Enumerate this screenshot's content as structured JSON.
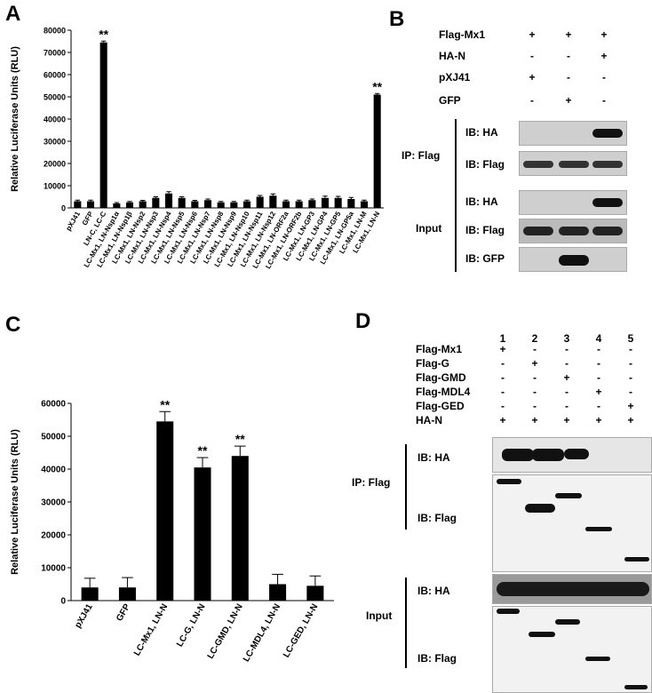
{
  "panelA": {
    "letter": "A",
    "chart_data": {
      "type": "bar",
      "ylabel": "Relative Luciferase Units (RLU)",
      "ylim": [
        0,
        80000
      ],
      "yticks": [
        0,
        10000,
        20000,
        30000,
        40000,
        50000,
        60000,
        70000,
        80000
      ],
      "categories": [
        "pXJ41",
        "GFP",
        "LN-C, LC-C",
        "LC-Mx1, LN-Nsp1α",
        "LC-Mx1, LN-Nsp1β",
        "LC-Mx1, LN-Nsp2",
        "LC-Mx1, LN-Nsp3",
        "LC-Mx1, LN-Nsp4",
        "LC-Mx1, LN-Nsp5",
        "LC-Mx1, LN-Nsp6",
        "LC-Mx1, LN-Nsp7",
        "LC-Mx1, LN-Nsp8",
        "LC-Mx1, LN-Nsp9",
        "LC-Mx1, LN-Nsp10",
        "LC-Mx1, LN-Nsp11",
        "LC-Mx1, LN-Nsp12",
        "LC-Mx1, LN-ORF2a",
        "LC-Mx1, LN-ORF2b",
        "LC-Mx1, LN-GP3",
        "LC-Mx1, LN-GP4",
        "LC-Mx1, LN-GP5",
        "LC-Mx1, LN-GP5a",
        "LC-Mx1, LN-M",
        "LC-Mx1, LN-N"
      ],
      "values": [
        3000,
        3000,
        74500,
        2000,
        2500,
        3000,
        4500,
        6500,
        4500,
        3000,
        3500,
        2500,
        2500,
        3000,
        5000,
        5500,
        3000,
        3000,
        3500,
        4500,
        4500,
        4000,
        3000,
        51000
      ],
      "errors": [
        500,
        500,
        600,
        400,
        400,
        400,
        500,
        800,
        500,
        400,
        500,
        400,
        400,
        500,
        600,
        800,
        500,
        500,
        500,
        800,
        700,
        700,
        500,
        500
      ],
      "annotations": [
        "",
        "",
        "**",
        "",
        "",
        "",
        "",
        "",
        "",
        "",
        "",
        "",
        "",
        "",
        "",
        "",
        "",
        "",
        "",
        "",
        "",
        "",
        "",
        "**"
      ]
    }
  },
  "panelB": {
    "letter": "B",
    "rows": [
      {
        "label": "Flag-Mx1",
        "signs": [
          "+",
          "+",
          "+"
        ]
      },
      {
        "label": "HA-N",
        "signs": [
          "-",
          "-",
          "+"
        ]
      },
      {
        "label": "pXJ41",
        "signs": [
          "+",
          "-",
          "-"
        ]
      },
      {
        "label": "GFP",
        "signs": [
          "-",
          "+",
          "-"
        ]
      }
    ],
    "ip_label": "IP: Flag",
    "input_label": "Input",
    "ib_ha": "IB: HA",
    "ib_flag": "IB: Flag",
    "ib_gfp": "IB: GFP"
  },
  "panelC": {
    "letter": "C",
    "chart_data": {
      "type": "bar",
      "ylabel": "Relative Luciferase Units (RLU)",
      "ylim": [
        0,
        60000
      ],
      "yticks": [
        0,
        10000,
        20000,
        30000,
        40000,
        50000,
        60000
      ],
      "categories": [
        "pXJ41",
        "GFP",
        "LC-Mx1, LN-N",
        "LC-G, LN-N",
        "LC-GMD, LN-N",
        "LC-MDL4, LN-N",
        "LC-GED, LN-N"
      ],
      "values": [
        4000,
        4000,
        54500,
        40500,
        44000,
        5000,
        4500
      ],
      "errors": [
        2800,
        3000,
        3000,
        3000,
        3000,
        3000,
        3000
      ],
      "annotations": [
        "",
        "",
        "**",
        "**",
        "**",
        "",
        ""
      ]
    }
  },
  "panelD": {
    "letter": "D",
    "lanes": [
      "1",
      "2",
      "3",
      "4",
      "5"
    ],
    "rows": [
      {
        "label": "Flag-Mx1",
        "signs": [
          "+",
          "-",
          "-",
          "-",
          "-"
        ]
      },
      {
        "label": "Flag-G",
        "signs": [
          "-",
          "+",
          "-",
          "-",
          "-"
        ]
      },
      {
        "label": "Flag-GMD",
        "signs": [
          "-",
          "-",
          "+",
          "-",
          "-"
        ]
      },
      {
        "label": "Flag-MDL4",
        "signs": [
          "-",
          "-",
          "-",
          "+",
          "-"
        ]
      },
      {
        "label": "Flag-GED",
        "signs": [
          "-",
          "-",
          "-",
          "-",
          "+"
        ]
      },
      {
        "label": "HA-N",
        "signs": [
          "+",
          "+",
          "+",
          "+",
          "+"
        ]
      }
    ],
    "ip_label": "IP: Flag",
    "input_label": "Input",
    "ib_ha": "IB: HA",
    "ib_flag": "IB: Flag"
  }
}
